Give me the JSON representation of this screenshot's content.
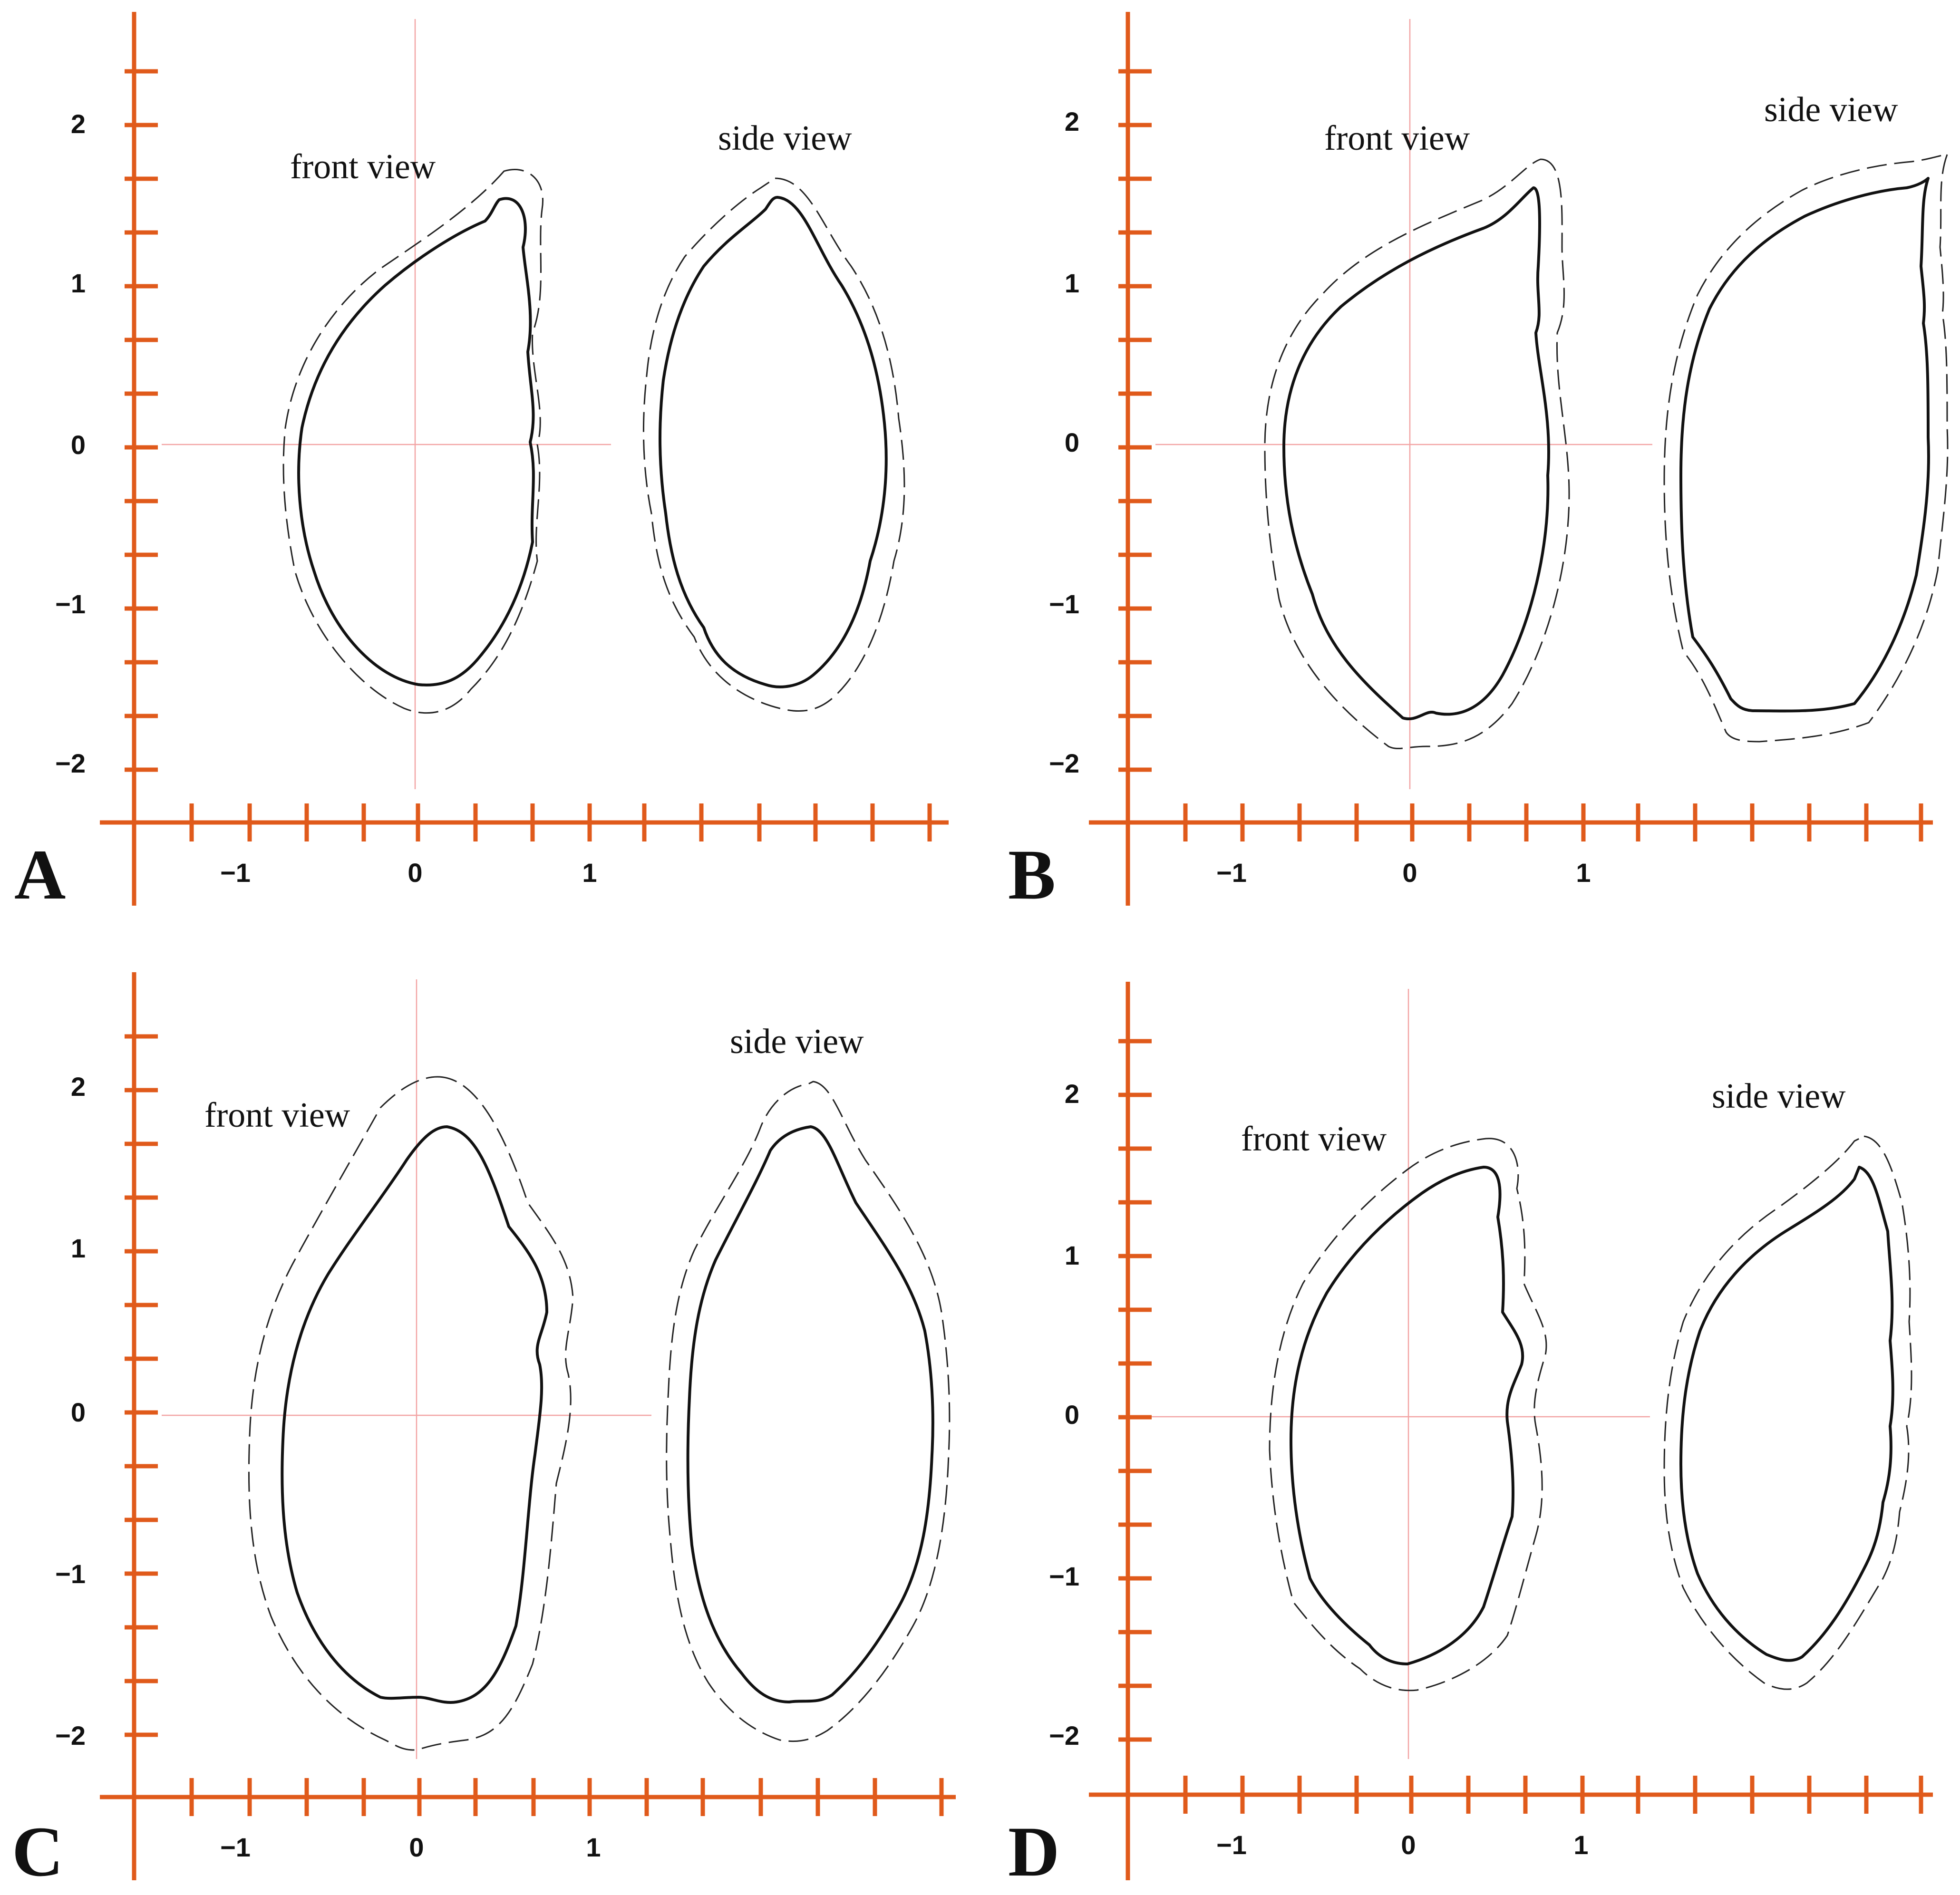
{
  "figure": {
    "panels": [
      {
        "id": "A",
        "letter": "A",
        "front_view_label": "front view",
        "side_view_label": "side view",
        "y_tick_labels": [
          "2",
          "1",
          "0",
          "−1",
          "−2"
        ],
        "x_tick_labels": [
          "−1",
          "0",
          "1"
        ]
      },
      {
        "id": "B",
        "letter": "B",
        "front_view_label": "front view",
        "side_view_label": "side view",
        "y_tick_labels": [
          "2",
          "1",
          "0",
          "−1",
          "−2"
        ],
        "x_tick_labels": [
          "−1",
          "0",
          "1"
        ]
      },
      {
        "id": "C",
        "letter": "C",
        "front_view_label": "front view",
        "side_view_label": "side view",
        "y_tick_labels": [
          "2",
          "1",
          "0",
          "−1",
          "−2"
        ],
        "x_tick_labels": [
          "−1",
          "0",
          "1"
        ]
      },
      {
        "id": "D",
        "letter": "D",
        "front_view_label": "front view",
        "side_view_label": "side view",
        "y_tick_labels": [
          "2",
          "1",
          "0",
          "−1",
          "−2"
        ],
        "x_tick_labels": [
          "−1",
          "0",
          "1"
        ]
      }
    ],
    "colors": {
      "axis": "#e05a1b",
      "guide": "#f2a3a3",
      "outline": "#111111"
    }
  }
}
